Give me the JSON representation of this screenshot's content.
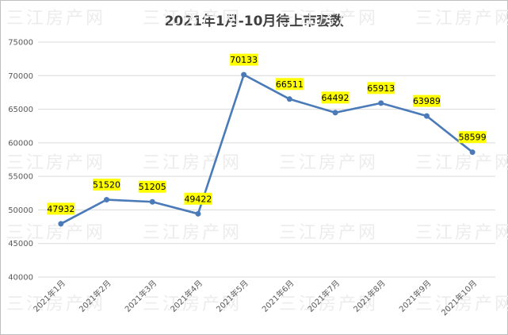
{
  "watermark": "三江房产网",
  "chart_data": {
    "type": "line",
    "title": "2021年1月-10月待上市套数",
    "xlabel": "",
    "ylabel": "",
    "categories": [
      "2021年1月",
      "2021年2月",
      "2021年3月",
      "2021年4月",
      "2021年5月",
      "2021年6月",
      "2021年7月",
      "2021年8月",
      "2021年9月",
      "2021年10月"
    ],
    "series": [
      {
        "values": [
          47932,
          51520,
          51205,
          49422,
          70133,
          66511,
          64492,
          65913,
          63989,
          58599
        ]
      }
    ],
    "ylim": [
      40000,
      75000
    ],
    "yticks": [
      40000,
      45000,
      50000,
      55000,
      60000,
      65000,
      70000,
      75000
    ],
    "grid": true,
    "legend": "none",
    "colors": {
      "line": "#4a7ab8",
      "label_bg": "#ffff00",
      "grid": "#d9d9d9"
    }
  }
}
